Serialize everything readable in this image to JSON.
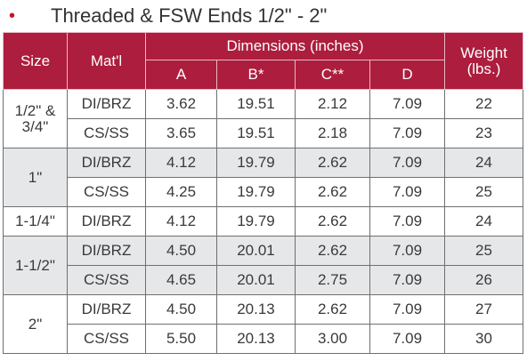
{
  "heading": {
    "bullet": "•",
    "title": "Threaded & FSW Ends 1/2\" - 2\""
  },
  "table": {
    "headers": {
      "size": "Size",
      "material": "Mat'l",
      "dimensions": "Dimensions (inches)",
      "weight_line1": "Weight",
      "weight_line2": "(lbs.)",
      "dims": [
        "A",
        "B*",
        "C**",
        "D"
      ]
    },
    "groups": [
      {
        "size_line1": "1/2\" &",
        "size_line2": "3/4\"",
        "rows": [
          {
            "mat": "DI/BRZ",
            "a": "3.62",
            "b": "19.51",
            "c": "2.12",
            "d": "7.09",
            "w": "22"
          },
          {
            "mat": "CS/SS",
            "a": "3.65",
            "b": "19.51",
            "c": "2.18",
            "d": "7.09",
            "w": "23"
          }
        ]
      },
      {
        "size_line1": "1\"",
        "size_line2": "",
        "rows": [
          {
            "mat": "DI/BRZ",
            "a": "4.12",
            "b": "19.79",
            "c": "2.62",
            "d": "7.09",
            "w": "24"
          },
          {
            "mat": "CS/SS",
            "a": "4.25",
            "b": "19.79",
            "c": "2.62",
            "d": "7.09",
            "w": "25"
          }
        ]
      },
      {
        "size_line1": "1-1/4\"",
        "size_line2": "",
        "rows": [
          {
            "mat": "DI/BRZ",
            "a": "4.12",
            "b": "19.79",
            "c": "2.62",
            "d": "7.09",
            "w": "24"
          }
        ]
      },
      {
        "size_line1": "1-1/2\"",
        "size_line2": "",
        "rows": [
          {
            "mat": "DI/BRZ",
            "a": "4.50",
            "b": "20.01",
            "c": "2.62",
            "d": "7.09",
            "w": "25"
          },
          {
            "mat": "CS/SS",
            "a": "4.65",
            "b": "20.01",
            "c": "2.75",
            "d": "7.09",
            "w": "26"
          }
        ]
      },
      {
        "size_line1": "2\"",
        "size_line2": "",
        "rows": [
          {
            "mat": "DI/BRZ",
            "a": "4.50",
            "b": "20.13",
            "c": "2.62",
            "d": "7.09",
            "w": "27"
          },
          {
            "mat": "CS/SS",
            "a": "5.50",
            "b": "20.13",
            "c": "3.00",
            "d": "7.09",
            "w": "30"
          }
        ]
      }
    ]
  },
  "colors": {
    "header_bg": "#ad1d3d",
    "header_text": "#ffffff",
    "shaded_row": "#e6e7e9",
    "bullet": "#c8102e"
  }
}
